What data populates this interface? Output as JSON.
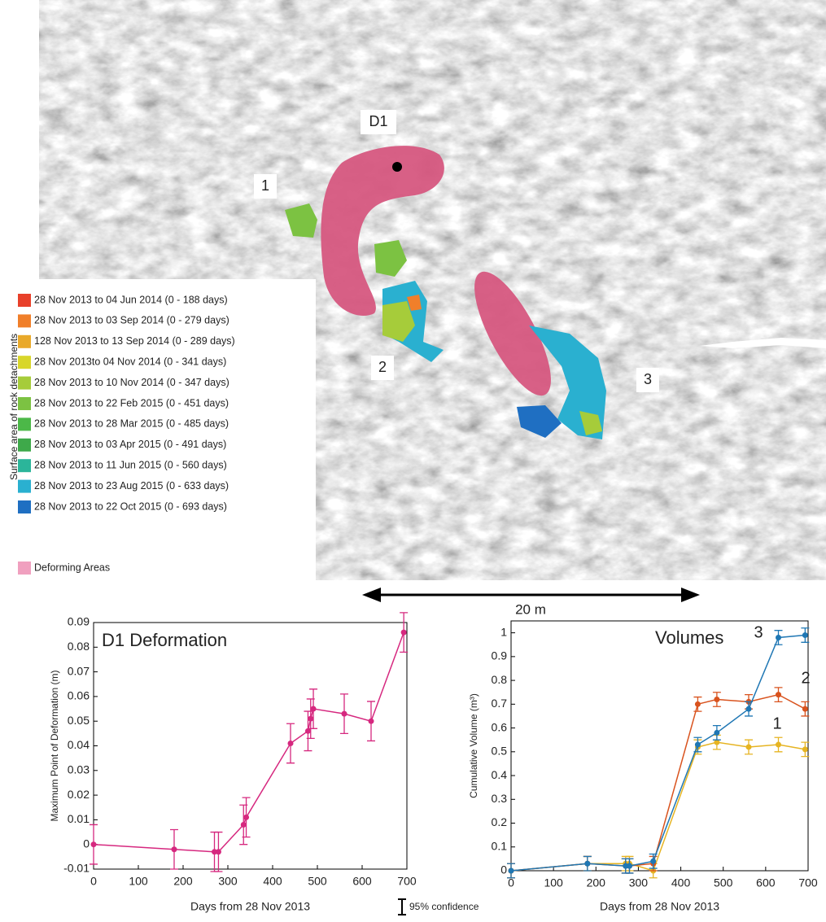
{
  "map": {
    "labels": [
      "D1",
      "1",
      "2",
      "3"
    ],
    "scale_label": "20 m",
    "legend_title": "Surface area of rock detachments",
    "legend": [
      {
        "label": "28 Nov 2013 to 04 Jun 2014 (0 - 188 days)",
        "color": "#e8402a"
      },
      {
        "label": "28 Nov 2013 to 03 Sep 2014 (0 - 279 days)",
        "color": "#f07f2a"
      },
      {
        "label": "128 Nov 2013 to 13 Sep 2014 (0 - 289 days)",
        "color": "#e9a92a"
      },
      {
        "label": "28 Nov 2013to 04 Nov 2014 (0 - 341 days)",
        "color": "#d8d62a"
      },
      {
        "label": "28 Nov 2013 to 10 Nov 2014 (0 - 347 days)",
        "color": "#a6cc3a"
      },
      {
        "label": "28 Nov 2013 to 22 Feb 2015 (0 - 451 days)",
        "color": "#7cc242"
      },
      {
        "label": "28 Nov 2013 to 28 Mar 2015 (0 - 485 days)",
        "color": "#4cb848"
      },
      {
        "label": "28 Nov 2013 to 03 Apr 2015 (0 - 491 days)",
        "color": "#3ea94a"
      },
      {
        "label": "28 Nov 2013 to 11 Jun 2015 (0 - 560 days)",
        "color": "#2bb59a"
      },
      {
        "label": "28 Nov 2013 to 23 Aug 2015 (0 - 633 days)",
        "color": "#2ab0d0"
      },
      {
        "label": "28 Nov 2013 to 22 Oct 2015 (0 - 693 days)",
        "color": "#1f6fc2"
      },
      {
        "label": "Deforming Areas",
        "color": "#f0a0bf"
      }
    ]
  },
  "chart_data": [
    {
      "type": "line",
      "title": "D1 Deformation",
      "x_label": "Days from 28 Nov 2013",
      "y_label": "Maximum Point of Deformation (m)",
      "x": [
        0,
        180,
        270,
        279,
        335,
        341,
        440,
        479,
        485,
        491,
        560,
        620,
        693
      ],
      "values": [
        0.0,
        -0.002,
        -0.003,
        -0.003,
        0.008,
        0.011,
        0.041,
        0.046,
        0.051,
        0.055,
        0.053,
        0.05,
        0.086
      ],
      "errors": [
        0.008,
        0.008,
        0.008,
        0.008,
        0.008,
        0.008,
        0.008,
        0.008,
        0.008,
        0.008,
        0.008,
        0.008,
        0.008
      ],
      "color": "#d6287f",
      "xlim": [
        0,
        700
      ],
      "ylim": [
        -0.01,
        0.09
      ],
      "xticks": [
        0,
        100,
        200,
        300,
        400,
        500,
        600,
        700
      ],
      "yticks": [
        -0.01,
        0,
        0.01,
        0.02,
        0.03,
        0.04,
        0.05,
        0.06,
        0.07,
        0.08,
        0.09
      ]
    },
    {
      "type": "line",
      "title": "Volumes",
      "x_label": "Days from 28 Nov 2013",
      "y_label": "Cumulative Volume (m³)",
      "x": [
        0,
        180,
        270,
        279,
        335,
        440,
        485,
        560,
        630,
        693
      ],
      "series": [
        {
          "name": "1",
          "color": "#e6b422",
          "values": [
            0,
            0.03,
            0.03,
            0.03,
            0.0,
            0.52,
            0.54,
            0.52,
            0.53,
            0.51
          ],
          "errors": [
            0.03,
            0.03,
            0.03,
            0.03,
            0.03,
            0.03,
            0.03,
            0.03,
            0.03,
            0.03
          ]
        },
        {
          "name": "2",
          "color": "#d9531e",
          "values": [
            0,
            0.03,
            0.02,
            0.02,
            0.03,
            0.7,
            0.72,
            0.71,
            0.74,
            0.68
          ],
          "errors": [
            0.03,
            0.03,
            0.03,
            0.03,
            0.03,
            0.03,
            0.03,
            0.03,
            0.03,
            0.03
          ]
        },
        {
          "name": "3",
          "color": "#1f77b4",
          "values": [
            0,
            0.03,
            0.02,
            0.02,
            0.04,
            0.53,
            0.58,
            0.68,
            0.98,
            0.99
          ],
          "errors": [
            0.03,
            0.03,
            0.03,
            0.03,
            0.03,
            0.03,
            0.03,
            0.03,
            0.03,
            0.03
          ]
        }
      ],
      "xlim": [
        0,
        700
      ],
      "ylim": [
        0,
        1.05
      ],
      "xticks": [
        0,
        100,
        200,
        300,
        400,
        500,
        600,
        700
      ],
      "yticks": [
        0,
        0.1,
        0.2,
        0.3,
        0.4,
        0.5,
        0.6,
        0.7,
        0.8,
        0.9,
        1
      ]
    }
  ],
  "footnote": "95% confidence"
}
